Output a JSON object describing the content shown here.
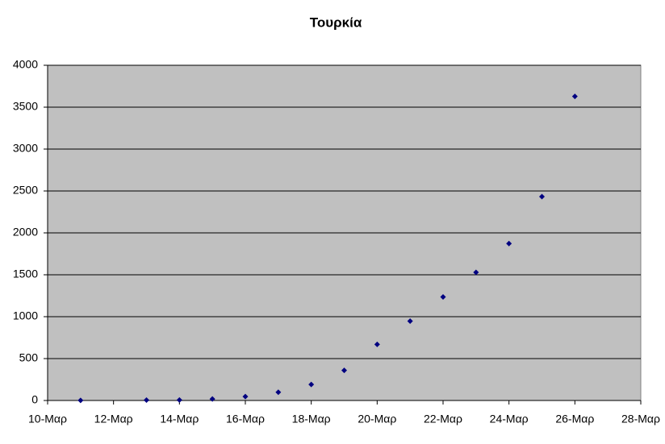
{
  "chart_data": {
    "type": "scatter",
    "title": "Τουρκία",
    "x": [
      11,
      13,
      14,
      15,
      16,
      17,
      18,
      19,
      20,
      21,
      22,
      23,
      24,
      25,
      26
    ],
    "values": [
      1,
      5,
      6,
      18,
      47,
      98,
      191,
      359,
      670,
      947,
      1236,
      1529,
      1872,
      2433,
      3629
    ],
    "color": "#000080",
    "background": "#c0c0c0",
    "grid": true,
    "xlim": [
      10,
      28
    ],
    "xticks": [
      {
        "value": 10,
        "label": "10-Μαρ"
      },
      {
        "value": 12,
        "label": "12-Μαρ"
      },
      {
        "value": 14,
        "label": "14-Μαρ"
      },
      {
        "value": 16,
        "label": "16-Μαρ"
      },
      {
        "value": 18,
        "label": "18-Μαρ"
      },
      {
        "value": 20,
        "label": "20-Μαρ"
      },
      {
        "value": 22,
        "label": "22-Μαρ"
      },
      {
        "value": 24,
        "label": "24-Μαρ"
      },
      {
        "value": 26,
        "label": "26-Μαρ"
      },
      {
        "value": 28,
        "label": "28-Μαρ"
      }
    ],
    "ylim": [
      0,
      4000
    ],
    "yticks": [
      0,
      500,
      1000,
      1500,
      2000,
      2500,
      3000,
      3500,
      4000
    ]
  }
}
